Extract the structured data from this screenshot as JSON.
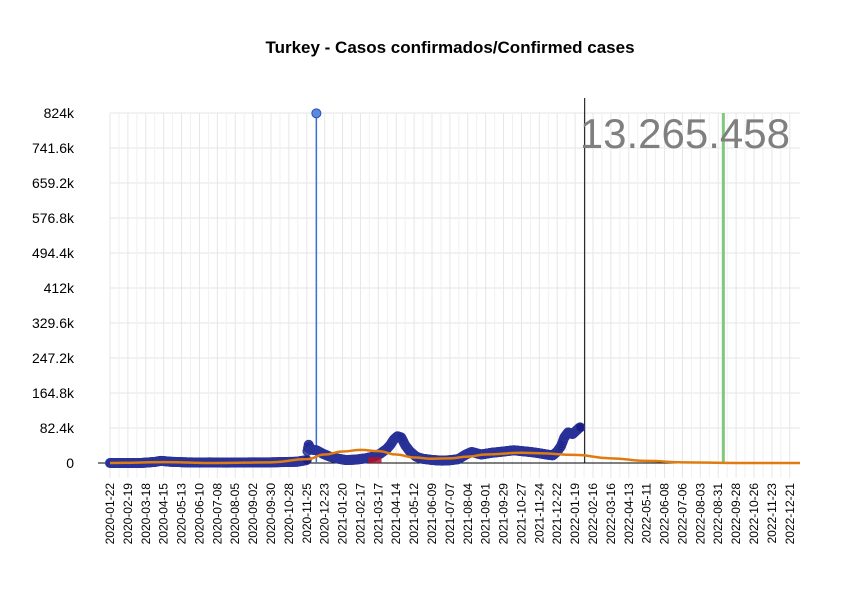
{
  "chart_data": {
    "type": "scatter",
    "title": "Turkey - Casos confirmados/Confirmed cases",
    "total_label": "13.265.458",
    "ylim": [
      0,
      824000
    ],
    "y_ticks": [
      {
        "value": 0,
        "label": "0"
      },
      {
        "value": 82400,
        "label": "82.4k"
      },
      {
        "value": 164800,
        "label": "164.8k"
      },
      {
        "value": 247200,
        "label": "247.2k"
      },
      {
        "value": 329600,
        "label": "329.6k"
      },
      {
        "value": 412000,
        "label": "412k"
      },
      {
        "value": 494400,
        "label": "494.4k"
      },
      {
        "value": 576800,
        "label": "576.8k"
      },
      {
        "value": 659200,
        "label": "659.2k"
      },
      {
        "value": 741600,
        "label": "741.6k"
      },
      {
        "value": 824000,
        "label": "824k"
      }
    ],
    "x_ticks": [
      "2020-01-22",
      "2020-02-19",
      "2020-03-18",
      "2020-04-15",
      "2020-05-13",
      "2020-06-10",
      "2020-07-08",
      "2020-08-05",
      "2020-09-02",
      "2020-09-30",
      "2020-10-28",
      "2020-11-25",
      "2020-12-23",
      "2021-01-20",
      "2021-02-17",
      "2021-03-17",
      "2021-04-14",
      "2021-05-12",
      "2021-06-09",
      "2021-07-07",
      "2021-08-04",
      "2021-09-01",
      "2021-09-29",
      "2021-10-27",
      "2021-11-24",
      "2021-12-22",
      "2022-01-19",
      "2022-02-16",
      "2022-03-16",
      "2022-04-13",
      "2022-05-11",
      "2022-06-08",
      "2022-07-06",
      "2022-08-03",
      "2022-08-31",
      "2022-09-28",
      "2022-10-26",
      "2022-11-23",
      "2022-12-21"
    ],
    "x_range": [
      "2020-01-22",
      "2023-01-06"
    ],
    "vertical_lines": [
      {
        "date": "2022-02-03",
        "color": "#000000"
      },
      {
        "date": "2022-09-08",
        "color": "#7fc97f"
      }
    ],
    "spike": {
      "date": "2020-12-10",
      "value": 823225
    },
    "observed_daily": [
      {
        "date": "2020-01-22",
        "value": 0
      },
      {
        "date": "2020-03-10",
        "value": 0
      },
      {
        "date": "2020-04-01",
        "value": 2500
      },
      {
        "date": "2020-04-11",
        "value": 5100
      },
      {
        "date": "2020-04-25",
        "value": 3000
      },
      {
        "date": "2020-05-15",
        "value": 1800
      },
      {
        "date": "2020-06-10",
        "value": 1000
      },
      {
        "date": "2020-06-25",
        "value": 1400
      },
      {
        "date": "2020-07-20",
        "value": 950
      },
      {
        "date": "2020-08-20",
        "value": 1250
      },
      {
        "date": "2020-09-10",
        "value": 1600
      },
      {
        "date": "2020-09-30",
        "value": 1600
      },
      {
        "date": "2020-10-20",
        "value": 2200
      },
      {
        "date": "2020-11-10",
        "value": 3000
      },
      {
        "date": "2020-11-25",
        "value": 7000
      },
      {
        "date": "2020-11-26",
        "value": 28000
      },
      {
        "date": "2020-11-28",
        "value": 43000
      },
      {
        "date": "2020-12-01",
        "value": 32000
      },
      {
        "date": "2020-12-10",
        "value": 30000
      },
      {
        "date": "2020-12-20",
        "value": 22000
      },
      {
        "date": "2020-12-31",
        "value": 15000
      },
      {
        "date": "2021-01-10",
        "value": 11000
      },
      {
        "date": "2021-01-25",
        "value": 7000
      },
      {
        "date": "2021-02-10",
        "value": 8000
      },
      {
        "date": "2021-02-25",
        "value": 11000
      },
      {
        "date": "2021-03-10",
        "value": 15000
      },
      {
        "date": "2021-03-20",
        "value": 22000
      },
      {
        "date": "2021-03-30",
        "value": 33000
      },
      {
        "date": "2021-04-05",
        "value": 43000
      },
      {
        "date": "2021-04-10",
        "value": 55000
      },
      {
        "date": "2021-04-16",
        "value": 63000
      },
      {
        "date": "2021-04-22",
        "value": 60000
      },
      {
        "date": "2021-04-28",
        "value": 42000
      },
      {
        "date": "2021-05-05",
        "value": 28000
      },
      {
        "date": "2021-05-15",
        "value": 15000
      },
      {
        "date": "2021-05-25",
        "value": 10000
      },
      {
        "date": "2021-06-10",
        "value": 7000
      },
      {
        "date": "2021-06-25",
        "value": 5500
      },
      {
        "date": "2021-07-07",
        "value": 6500
      },
      {
        "date": "2021-07-20",
        "value": 9000
      },
      {
        "date": "2021-08-01",
        "value": 20000
      },
      {
        "date": "2021-08-10",
        "value": 26000
      },
      {
        "date": "2021-08-25",
        "value": 20000
      },
      {
        "date": "2021-09-10",
        "value": 24000
      },
      {
        "date": "2021-09-29",
        "value": 27000
      },
      {
        "date": "2021-10-15",
        "value": 30000
      },
      {
        "date": "2021-10-27",
        "value": 28000
      },
      {
        "date": "2021-11-10",
        "value": 26000
      },
      {
        "date": "2021-11-24",
        "value": 23000
      },
      {
        "date": "2021-12-05",
        "value": 20000
      },
      {
        "date": "2021-12-15",
        "value": 18000
      },
      {
        "date": "2021-12-22",
        "value": 27000
      },
      {
        "date": "2021-12-28",
        "value": 40000
      },
      {
        "date": "2022-01-02",
        "value": 60000
      },
      {
        "date": "2022-01-08",
        "value": 72000
      },
      {
        "date": "2022-01-15",
        "value": 68000
      },
      {
        "date": "2022-01-20",
        "value": 75000
      },
      {
        "date": "2022-01-25",
        "value": 82000
      },
      {
        "date": "2022-01-27",
        "value": 84000
      }
    ],
    "trend": [
      {
        "date": "2020-01-22",
        "value": 0
      },
      {
        "date": "2020-04-15",
        "value": 2000
      },
      {
        "date": "2020-07-08",
        "value": 0
      },
      {
        "date": "2020-09-30",
        "value": 1500
      },
      {
        "date": "2020-11-25",
        "value": 9000
      },
      {
        "date": "2020-12-23",
        "value": 20000
      },
      {
        "date": "2021-01-20",
        "value": 27000
      },
      {
        "date": "2021-02-17",
        "value": 31000
      },
      {
        "date": "2021-03-17",
        "value": 28000
      },
      {
        "date": "2021-04-14",
        "value": 20000
      },
      {
        "date": "2021-05-12",
        "value": 13000
      },
      {
        "date": "2021-06-09",
        "value": 10000
      },
      {
        "date": "2021-07-07",
        "value": 11000
      },
      {
        "date": "2021-08-04",
        "value": 15000
      },
      {
        "date": "2021-09-01",
        "value": 20000
      },
      {
        "date": "2021-10-27",
        "value": 24000
      },
      {
        "date": "2021-11-24",
        "value": 23000
      },
      {
        "date": "2022-01-19",
        "value": 19000
      },
      {
        "date": "2022-03-16",
        "value": 11000
      },
      {
        "date": "2022-05-11",
        "value": 5000
      },
      {
        "date": "2022-07-06",
        "value": 1500
      },
      {
        "date": "2022-09-28",
        "value": 0
      },
      {
        "date": "2023-01-06",
        "value": 0
      }
    ],
    "highlight_band": {
      "start": "2021-03-01",
      "end": "2021-03-22",
      "value": 14000
    },
    "colors": {
      "points_fill": "#1a1f80",
      "points_stroke": "#2a3399",
      "spike_line": "#3b6fd6",
      "spike_point": "#5a8ae0",
      "trend": "#e07b10",
      "highlight": "#b0102a",
      "grid": "#e6e6e6"
    }
  }
}
